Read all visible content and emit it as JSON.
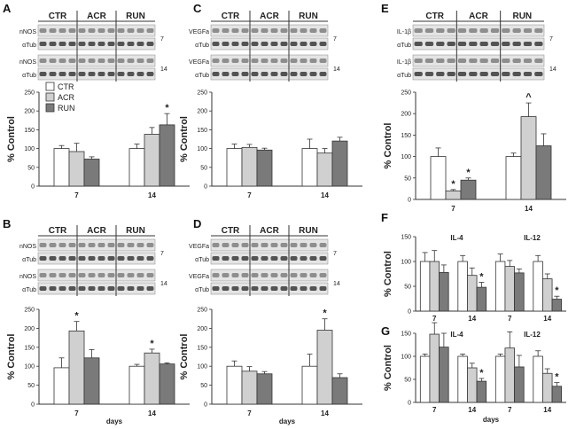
{
  "figure": {
    "legend": {
      "entries": [
        "CTR",
        "ACR",
        "RUN"
      ],
      "colors": [
        "#ffffff",
        "#d0d0d0",
        "#7a7a7a"
      ]
    },
    "blot_groups": [
      "CTR",
      "ACR",
      "RUN"
    ],
    "days_label": "days"
  },
  "chart_data": [
    {
      "panel": "A",
      "type": "bar",
      "ylabel": "% Control",
      "ylim": [
        0,
        250
      ],
      "yticks": [
        0,
        50,
        100,
        150,
        200,
        250
      ],
      "categories": [
        "7",
        "14"
      ],
      "series": [
        {
          "name": "CTR",
          "values": [
            100,
            100
          ],
          "errors": [
            8,
            12
          ]
        },
        {
          "name": "ACR",
          "values": [
            92,
            138
          ],
          "errors": [
            22,
            18
          ]
        },
        {
          "name": "RUN",
          "values": [
            72,
            163
          ],
          "errors": [
            6,
            30
          ]
        }
      ],
      "annotations": [
        {
          "text": "*",
          "category": 1,
          "series": 2
        }
      ],
      "blot": {
        "rows": [
          {
            "label": "nNOS",
            "day": ""
          },
          {
            "label": "αTub",
            "day": "7"
          },
          {
            "label": "nNOS",
            "day": ""
          },
          {
            "label": "αTub",
            "day": "14"
          }
        ]
      }
    },
    {
      "panel": "B",
      "type": "bar",
      "ylabel": "% Control",
      "ylim": [
        0,
        250
      ],
      "yticks": [
        0,
        50,
        100,
        150,
        200,
        250
      ],
      "categories": [
        "7",
        "14"
      ],
      "xlabel": "days",
      "series": [
        {
          "name": "CTR",
          "values": [
            96,
            100
          ],
          "errors": [
            26,
            5
          ]
        },
        {
          "name": "ACR",
          "values": [
            193,
            135
          ],
          "errors": [
            25,
            10
          ]
        },
        {
          "name": "RUN",
          "values": [
            122,
            106
          ],
          "errors": [
            22,
            3
          ]
        }
      ],
      "annotations": [
        {
          "text": "*",
          "category": 0,
          "series": 1
        },
        {
          "text": "*",
          "category": 1,
          "series": 1
        }
      ],
      "blot": {
        "rows": [
          {
            "label": "nNOS",
            "day": ""
          },
          {
            "label": "αTub",
            "day": "7"
          },
          {
            "label": "nNOS",
            "day": ""
          },
          {
            "label": "αTub",
            "day": "14"
          }
        ]
      }
    },
    {
      "panel": "C",
      "type": "bar",
      "ylabel": "% Control",
      "ylim": [
        0,
        250
      ],
      "yticks": [
        0,
        50,
        100,
        150,
        200,
        250
      ],
      "categories": [
        "7",
        "14"
      ],
      "series": [
        {
          "name": "CTR",
          "values": [
            100,
            100
          ],
          "errors": [
            12,
            25
          ]
        },
        {
          "name": "ACR",
          "values": [
            103,
            88
          ],
          "errors": [
            8,
            12
          ]
        },
        {
          "name": "RUN",
          "values": [
            96,
            120
          ],
          "errors": [
            5,
            10
          ]
        }
      ],
      "annotations": [],
      "blot": {
        "rows": [
          {
            "label": "VEGFa",
            "day": ""
          },
          {
            "label": "αTub",
            "day": "7"
          },
          {
            "label": "VEGFa",
            "day": ""
          },
          {
            "label": "αTub",
            "day": "14"
          }
        ]
      }
    },
    {
      "panel": "D",
      "type": "bar",
      "ylabel": "% Control",
      "ylim": [
        0,
        250
      ],
      "yticks": [
        0,
        50,
        100,
        150,
        200,
        250
      ],
      "categories": [
        "7",
        "14"
      ],
      "xlabel": "days",
      "series": [
        {
          "name": "CTR",
          "values": [
            100,
            100
          ],
          "errors": [
            14,
            32
          ]
        },
        {
          "name": "ACR",
          "values": [
            87,
            195
          ],
          "errors": [
            12,
            30
          ]
        },
        {
          "name": "RUN",
          "values": [
            80,
            70
          ],
          "errors": [
            6,
            10
          ]
        }
      ],
      "annotations": [
        {
          "text": "*",
          "category": 1,
          "series": 1
        }
      ],
      "blot": {
        "rows": [
          {
            "label": "VEGFa",
            "day": ""
          },
          {
            "label": "αTub",
            "day": "7"
          },
          {
            "label": "VEGFa",
            "day": ""
          },
          {
            "label": "αTub",
            "day": "14"
          }
        ]
      }
    },
    {
      "panel": "E",
      "type": "bar",
      "ylabel": "% Control",
      "ylim": [
        0,
        250
      ],
      "yticks": [
        0,
        50,
        100,
        150,
        200,
        250
      ],
      "categories": [
        "7",
        "14"
      ],
      "series": [
        {
          "name": "CTR",
          "values": [
            100,
            100
          ],
          "errors": [
            20,
            8
          ]
        },
        {
          "name": "ACR",
          "values": [
            20,
            193
          ],
          "errors": [
            3,
            32
          ]
        },
        {
          "name": "RUN",
          "values": [
            45,
            125
          ],
          "errors": [
            5,
            28
          ]
        }
      ],
      "annotations": [
        {
          "text": "*",
          "category": 0,
          "series": 1
        },
        {
          "text": "*",
          "category": 0,
          "series": 2
        },
        {
          "text": "^",
          "category": 1,
          "series": 1
        }
      ],
      "blot": {
        "rows": [
          {
            "label": "IL-1β",
            "day": ""
          },
          {
            "label": "αTub",
            "day": "7"
          },
          {
            "label": "IL-1β",
            "day": ""
          },
          {
            "label": "αTub",
            "day": "14"
          }
        ]
      }
    },
    {
      "panel": "F",
      "type": "bar",
      "ylabel": "% Control",
      "ylim": [
        0,
        150
      ],
      "yticks": [
        0,
        50,
        100,
        150
      ],
      "groups": [
        {
          "title": "IL-4",
          "categories": [
            "7",
            "14"
          ],
          "series": [
            {
              "name": "CTR",
              "values": [
                100,
                100
              ],
              "errors": [
                18,
                12
              ]
            },
            {
              "name": "ACR",
              "values": [
                100,
                72
              ],
              "errors": [
                22,
                15
              ]
            },
            {
              "name": "RUN",
              "values": [
                78,
                48
              ],
              "errors": [
                15,
                10
              ]
            }
          ],
          "annotations": [
            {
              "text": "*",
              "category": 1,
              "series": 2
            }
          ]
        },
        {
          "title": "IL-12",
          "categories": [
            "7",
            "14"
          ],
          "series": [
            {
              "name": "CTR",
              "values": [
                100,
                100
              ],
              "errors": [
                15,
                12
              ]
            },
            {
              "name": "ACR",
              "values": [
                90,
                65
              ],
              "errors": [
                12,
                10
              ]
            },
            {
              "name": "RUN",
              "values": [
                77,
                24
              ],
              "errors": [
                8,
                6
              ]
            }
          ],
          "annotations": [
            {
              "text": "*",
              "category": 1,
              "series": 2
            }
          ]
        }
      ]
    },
    {
      "panel": "G",
      "type": "bar",
      "ylabel": "% Control",
      "ylim": [
        0,
        150
      ],
      "yticks": [
        0,
        50,
        100,
        150
      ],
      "xlabel": "days",
      "groups": [
        {
          "title": "IL-4",
          "categories": [
            "7",
            "14"
          ],
          "series": [
            {
              "name": "CTR",
              "values": [
                100,
                100
              ],
              "errors": [
                5,
                5
              ]
            },
            {
              "name": "ACR",
              "values": [
                148,
                75
              ],
              "errors": [
                25,
                10
              ]
            },
            {
              "name": "RUN",
              "values": [
                120,
                46
              ],
              "errors": [
                30,
                6
              ]
            }
          ],
          "annotations": [
            {
              "text": "*",
              "category": 1,
              "series": 2
            }
          ]
        },
        {
          "title": "IL-12",
          "categories": [
            "7",
            "14"
          ],
          "series": [
            {
              "name": "CTR",
              "values": [
                100,
                100
              ],
              "errors": [
                5,
                12
              ]
            },
            {
              "name": "ACR",
              "values": [
                118,
                63
              ],
              "errors": [
                35,
                10
              ]
            },
            {
              "name": "RUN",
              "values": [
                77,
                35
              ],
              "errors": [
                25,
                8
              ]
            }
          ],
          "annotations": [
            {
              "text": "*",
              "category": 1,
              "series": 2
            }
          ]
        }
      ]
    }
  ]
}
